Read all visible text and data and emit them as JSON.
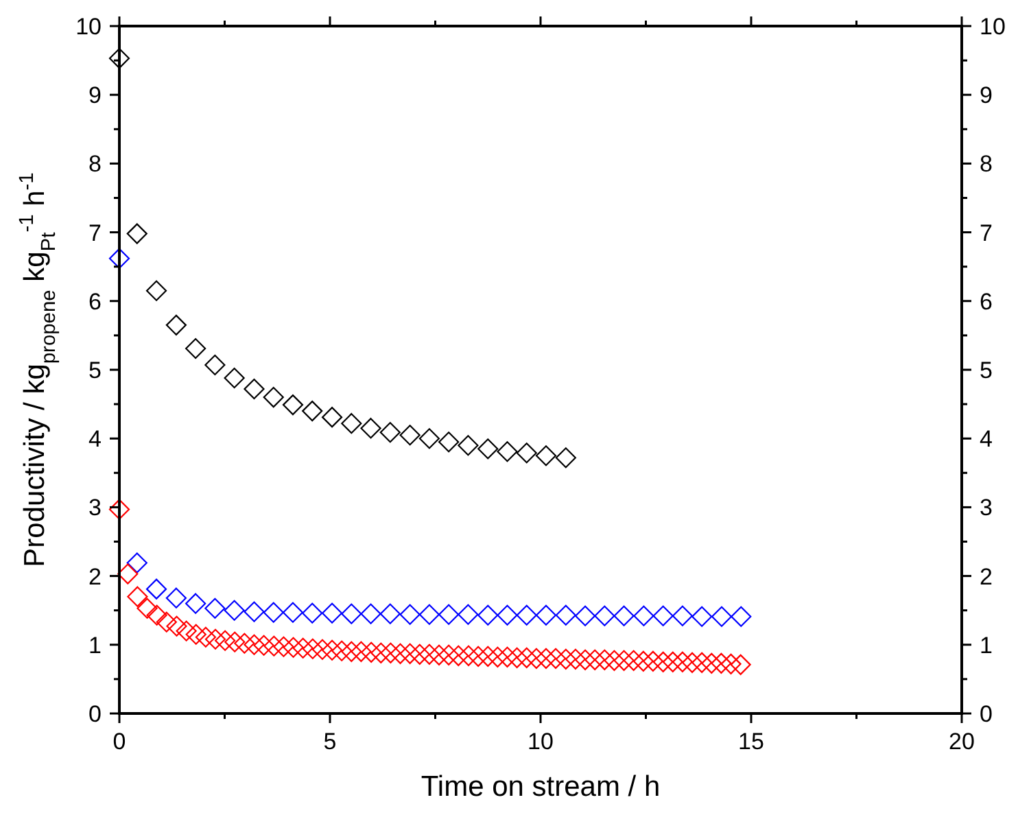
{
  "chart_data": {
    "type": "scatter",
    "xlabel": "Time on stream / h",
    "ylabel": "Productivity / kg$_{propene}$ kg$_{Pt}$$^{-1}$ h$^{-1}$",
    "marker": "diamond",
    "grid": false,
    "xlim": [
      0,
      20
    ],
    "xticks": [
      0,
      {
        "value": 2.5,
        "label": null
      },
      5,
      {
        "value": 7.5,
        "label": null
      },
      10,
      {
        "value": 12.5,
        "label": null
      },
      15,
      {
        "value": 17.5,
        "label": null
      },
      20
    ],
    "ylim": [
      0,
      10
    ],
    "yticks": [
      0,
      {
        "value": 0.5,
        "label": null
      },
      1,
      {
        "value": 1.5,
        "label": null
      },
      2,
      {
        "value": 2.5,
        "label": null
      },
      3,
      {
        "value": 3.5,
        "label": null
      },
      4,
      {
        "value": 4.5,
        "label": null
      },
      5,
      {
        "value": 5.5,
        "label": null
      },
      6,
      {
        "value": 6.5,
        "label": null
      },
      7,
      {
        "value": 7.5,
        "label": null
      },
      8,
      {
        "value": 8.5,
        "label": null
      },
      9,
      {
        "value": 9.5,
        "label": null
      },
      10
    ],
    "y2lim": [
      0,
      10
    ],
    "y2ticks": [
      0,
      {
        "value": 0.5,
        "label": null
      },
      1,
      {
        "value": 1.5,
        "label": null
      },
      2,
      {
        "value": 2.5,
        "label": null
      },
      3,
      {
        "value": 3.5,
        "label": null
      },
      4,
      {
        "value": 4.5,
        "label": null
      },
      5,
      {
        "value": 5.5,
        "label": null
      },
      6,
      {
        "value": 6.5,
        "label": null
      },
      7,
      {
        "value": 7.5,
        "label": null
      },
      8,
      {
        "value": 8.5,
        "label": null
      },
      9,
      {
        "value": 9.5,
        "label": null
      },
      10
    ],
    "series": [
      {
        "color": "#000000",
        "x": [
          0,
          0.42,
          0.88,
          1.35,
          1.81,
          2.27,
          2.73,
          3.2,
          3.66,
          4.12,
          4.58,
          5.05,
          5.51,
          5.97,
          6.43,
          6.9,
          7.36,
          7.82,
          8.28,
          8.75,
          9.21,
          9.67,
          10.13,
          10.6
        ],
        "values": [
          9.53,
          6.98,
          6.15,
          5.65,
          5.31,
          5.07,
          4.88,
          4.72,
          4.6,
          4.49,
          4.4,
          4.31,
          4.22,
          4.15,
          4.09,
          4.05,
          4.0,
          3.95,
          3.9,
          3.85,
          3.81,
          3.79,
          3.75,
          3.72
        ]
      },
      {
        "color": "#0000ff",
        "x": [
          0,
          0.42,
          0.88,
          1.35,
          1.81,
          2.27,
          2.73,
          3.2,
          3.66,
          4.12,
          4.58,
          5.05,
          5.51,
          5.97,
          6.43,
          6.9,
          7.36,
          7.82,
          8.28,
          8.75,
          9.21,
          9.67,
          10.13,
          10.6,
          11.06,
          11.52,
          11.98,
          12.45,
          12.91,
          13.37,
          13.83,
          14.3,
          14.76
        ],
        "values": [
          6.62,
          2.19,
          1.81,
          1.68,
          1.6,
          1.53,
          1.5,
          1.48,
          1.47,
          1.47,
          1.46,
          1.46,
          1.45,
          1.45,
          1.45,
          1.44,
          1.44,
          1.44,
          1.44,
          1.43,
          1.43,
          1.43,
          1.43,
          1.43,
          1.42,
          1.42,
          1.42,
          1.42,
          1.42,
          1.42,
          1.41,
          1.41,
          1.41
        ]
      },
      {
        "color": "#ff0000",
        "x": [
          0,
          0.2,
          0.43,
          0.66,
          0.89,
          1.12,
          1.36,
          1.59,
          1.82,
          2.05,
          2.28,
          2.51,
          2.74,
          2.97,
          3.2,
          3.43,
          3.67,
          3.9,
          4.13,
          4.36,
          4.59,
          4.82,
          5.05,
          5.28,
          5.51,
          5.74,
          5.98,
          6.21,
          6.44,
          6.67,
          6.9,
          7.13,
          7.36,
          7.59,
          7.82,
          8.05,
          8.29,
          8.52,
          8.75,
          8.98,
          9.21,
          9.44,
          9.67,
          9.9,
          10.13,
          10.36,
          10.6,
          10.83,
          11.06,
          11.29,
          11.52,
          11.75,
          11.98,
          12.21,
          12.44,
          12.67,
          12.91,
          13.14,
          13.37,
          13.6,
          13.83,
          14.06,
          14.29,
          14.52,
          14.75
        ],
        "values": [
          2.97,
          2.03,
          1.7,
          1.53,
          1.43,
          1.33,
          1.27,
          1.2,
          1.15,
          1.11,
          1.08,
          1.06,
          1.04,
          1.02,
          1.0,
          0.99,
          0.98,
          0.97,
          0.96,
          0.95,
          0.94,
          0.93,
          0.92,
          0.91,
          0.9,
          0.9,
          0.89,
          0.88,
          0.88,
          0.87,
          0.87,
          0.86,
          0.86,
          0.85,
          0.85,
          0.84,
          0.84,
          0.83,
          0.83,
          0.82,
          0.82,
          0.81,
          0.81,
          0.8,
          0.8,
          0.8,
          0.79,
          0.79,
          0.78,
          0.78,
          0.78,
          0.77,
          0.77,
          0.77,
          0.76,
          0.76,
          0.75,
          0.75,
          0.75,
          0.74,
          0.74,
          0.73,
          0.73,
          0.72,
          0.71
        ]
      }
    ]
  }
}
